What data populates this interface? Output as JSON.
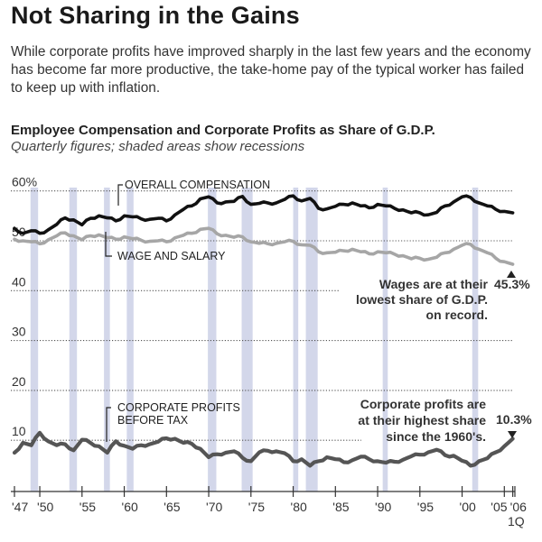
{
  "header": {
    "title": "Not Sharing in the Gains",
    "subtitle": "While corporate profits have improved sharply in the last few years and the economy has become far more productive, the take-home pay of the typical worker has failed to keep up with inflation."
  },
  "chart_data": {
    "type": "line",
    "title": "Employee Compensation and Corporate Profits as Share of G.D.P.",
    "subtitle": "Quarterly figures; shaded areas show recessions",
    "xlabel": "",
    "ylabel": "",
    "xlim": [
      1947,
      2006.25
    ],
    "ylim": [
      0,
      60
    ],
    "grid": true,
    "y_ticks": [
      {
        "value": 60,
        "label": "60%"
      },
      {
        "value": 50,
        "label": "50"
      },
      {
        "value": 40,
        "label": "40"
      },
      {
        "value": 30,
        "label": "30"
      },
      {
        "value": 20,
        "label": "20"
      },
      {
        "value": 10,
        "label": "10"
      }
    ],
    "x_ticks": [
      {
        "value": 1947,
        "label": "'47"
      },
      {
        "value": 1950,
        "label": "'50"
      },
      {
        "value": 1955,
        "label": "'55"
      },
      {
        "value": 1960,
        "label": "'60"
      },
      {
        "value": 1965,
        "label": "'65"
      },
      {
        "value": 1970,
        "label": "'70"
      },
      {
        "value": 1975,
        "label": "'75"
      },
      {
        "value": 1980,
        "label": "'80"
      },
      {
        "value": 1985,
        "label": "'85"
      },
      {
        "value": 1990,
        "label": "'90"
      },
      {
        "value": 1995,
        "label": "'95"
      },
      {
        "value": 2000,
        "label": "'00"
      },
      {
        "value": 2005,
        "label": "'05"
      },
      {
        "value": 2006,
        "label": "'06"
      }
    ],
    "x_tick_sublabel": "1Q",
    "recessions": [
      [
        1948.9,
        1949.8
      ],
      [
        1953.5,
        1954.4
      ],
      [
        1957.6,
        1958.3
      ],
      [
        1960.3,
        1961.1
      ],
      [
        1969.9,
        1970.9
      ],
      [
        1973.9,
        1975.2
      ],
      [
        1980.0,
        1980.6
      ],
      [
        1981.5,
        1982.9
      ],
      [
        1990.6,
        1991.2
      ],
      [
        2001.2,
        2001.9
      ]
    ],
    "series": [
      {
        "name": "OVERALL COMPENSATION",
        "color": "#111111",
        "x": [
          1947,
          1948,
          1949,
          1950,
          1951,
          1952,
          1953,
          1954,
          1955,
          1956,
          1957,
          1958,
          1959,
          1960,
          1961,
          1962,
          1963,
          1964,
          1965,
          1966,
          1967,
          1968,
          1969,
          1970,
          1971,
          1972,
          1973,
          1974,
          1975,
          1976,
          1977,
          1978,
          1979,
          1980,
          1981,
          1982,
          1983,
          1984,
          1985,
          1986,
          1987,
          1988,
          1989,
          1990,
          1991,
          1992,
          1993,
          1994,
          1995,
          1996,
          1997,
          1998,
          1999,
          2000,
          2001,
          2002,
          2003,
          2004,
          2005,
          2006
        ],
        "y": [
          52.5,
          51.5,
          52.0,
          51.5,
          52.2,
          53.3,
          54.6,
          54.2,
          53.2,
          54.5,
          55.0,
          54.6,
          54.0,
          55.0,
          54.8,
          54.4,
          54.3,
          54.5,
          54.0,
          55.2,
          56.3,
          57.0,
          58.4,
          58.8,
          57.6,
          57.8,
          57.9,
          58.9,
          57.3,
          57.5,
          57.6,
          57.6,
          58.3,
          59.0,
          58.0,
          58.5,
          56.5,
          56.4,
          56.9,
          57.3,
          57.6,
          57.0,
          56.6,
          57.3,
          57.0,
          56.5,
          56.2,
          55.6,
          55.6,
          55.2,
          55.7,
          57.0,
          57.8,
          58.8,
          58.7,
          57.6,
          57.0,
          56.3,
          55.9,
          55.6
        ]
      },
      {
        "name": "WAGE AND SALARY",
        "color": "#a6a6a6",
        "x": [
          1947,
          1948,
          1949,
          1950,
          1951,
          1952,
          1953,
          1954,
          1955,
          1956,
          1957,
          1958,
          1959,
          1960,
          1961,
          1962,
          1963,
          1964,
          1965,
          1966,
          1967,
          1968,
          1969,
          1970,
          1971,
          1972,
          1973,
          1974,
          1975,
          1976,
          1977,
          1978,
          1979,
          1980,
          1981,
          1982,
          1983,
          1984,
          1985,
          1986,
          1987,
          1988,
          1989,
          1990,
          1991,
          1992,
          1993,
          1994,
          1995,
          1996,
          1997,
          1998,
          1999,
          2000,
          2001,
          2002,
          2003,
          2004,
          2005,
          2006
        ],
        "y": [
          50.3,
          50.0,
          49.8,
          49.4,
          50.2,
          51.0,
          51.6,
          51.0,
          50.2,
          51.0,
          51.2,
          50.6,
          50.3,
          50.8,
          50.4,
          50.1,
          49.9,
          50.0,
          49.8,
          50.6,
          51.1,
          51.5,
          52.3,
          52.5,
          51.4,
          51.1,
          50.7,
          50.8,
          49.8,
          49.5,
          49.4,
          49.5,
          49.8,
          49.9,
          49.2,
          49.1,
          47.8,
          47.6,
          47.7,
          48.0,
          48.3,
          47.8,
          47.4,
          47.8,
          47.6,
          47.3,
          47.0,
          46.4,
          46.5,
          46.3,
          46.7,
          47.6,
          48.3,
          49.1,
          49.3,
          48.3,
          47.6,
          46.5,
          45.8,
          45.3
        ]
      },
      {
        "name": "CORPORATE PROFITS BEFORE TAX",
        "color": "#555555",
        "x": [
          1947,
          1948,
          1949,
          1950,
          1951,
          1952,
          1953,
          1954,
          1955,
          1956,
          1957,
          1958,
          1959,
          1960,
          1961,
          1962,
          1963,
          1964,
          1965,
          1966,
          1967,
          1968,
          1969,
          1970,
          1971,
          1972,
          1973,
          1974,
          1975,
          1976,
          1977,
          1978,
          1979,
          1980,
          1981,
          1982,
          1983,
          1984,
          1985,
          1986,
          1987,
          1988,
          1989,
          1990,
          1991,
          1992,
          1993,
          1994,
          1995,
          1996,
          1997,
          1998,
          1999,
          2000,
          2001,
          2002,
          2003,
          2004,
          2005,
          2006
        ],
        "y": [
          7.5,
          9.5,
          9.0,
          11.5,
          9.8,
          9.0,
          9.2,
          8.0,
          10.1,
          9.5,
          8.8,
          7.5,
          9.8,
          8.9,
          8.3,
          9.0,
          9.2,
          9.7,
          10.4,
          10.3,
          9.5,
          9.3,
          8.3,
          6.6,
          7.2,
          7.5,
          7.8,
          6.5,
          5.8,
          7.6,
          7.9,
          7.8,
          7.4,
          5.8,
          6.2,
          4.9,
          5.8,
          6.6,
          6.2,
          5.6,
          6.0,
          6.7,
          6.2,
          5.8,
          5.5,
          5.7,
          6.1,
          6.8,
          7.1,
          7.6,
          8.1,
          7.0,
          6.9,
          5.9,
          4.9,
          5.8,
          6.4,
          7.6,
          8.8,
          10.3
        ]
      }
    ],
    "annotations": [
      {
        "text_lines": [
          "Wages are at their",
          "lowest share of G.D.P.",
          "on record."
        ],
        "value_label": "45.3%",
        "marker": "up-triangle"
      },
      {
        "text_lines": [
          "Corporate profits are",
          "at their highest share",
          "since the 1960's."
        ],
        "value_label": "10.3%",
        "marker": "down-triangle"
      }
    ],
    "series_labels": [
      "OVERALL COMPENSATION",
      "WAGE AND SALARY",
      "CORPORATE PROFITS",
      "BEFORE TAX"
    ],
    "colors": {
      "recession": "#d3d7ea",
      "grid": "#555555",
      "axis": "#333333"
    }
  }
}
